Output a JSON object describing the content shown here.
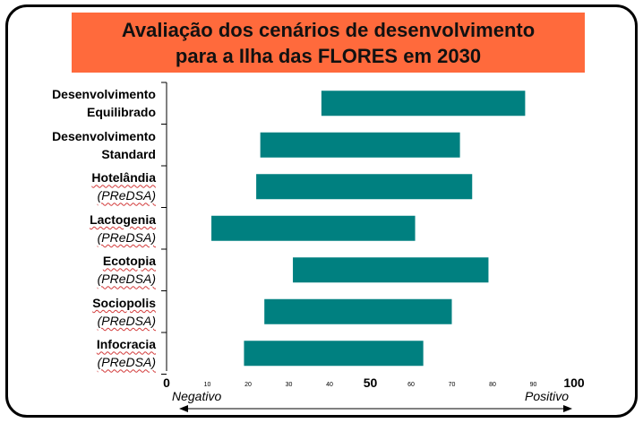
{
  "title": {
    "line1": "Avaliação dos cenários de desenvolvimento",
    "line2": "para a Ilha das FLORES em 2030"
  },
  "chart_data": {
    "type": "bar",
    "orientation": "horizontal-range",
    "xlim": [
      0,
      100
    ],
    "grid": false,
    "bar_color": "#008080",
    "title_bg_color": "#ff6a3c",
    "xlabel_left": "Negativo",
    "xlabel_right": "Positivo",
    "ticks": [
      {
        "value": 0,
        "label": "0",
        "major": true
      },
      {
        "value": 10,
        "label": "10",
        "major": false
      },
      {
        "value": 20,
        "label": "20",
        "major": false
      },
      {
        "value": 30,
        "label": "30",
        "major": false
      },
      {
        "value": 40,
        "label": "40",
        "major": false
      },
      {
        "value": 50,
        "label": "50",
        "major": true
      },
      {
        "value": 60,
        "label": "60",
        "major": false
      },
      {
        "value": 70,
        "label": "70",
        "major": false
      },
      {
        "value": 80,
        "label": "80",
        "major": false
      },
      {
        "value": 90,
        "label": "90",
        "major": false
      },
      {
        "value": 100,
        "label": "100",
        "major": true
      }
    ],
    "categories": [
      {
        "line1": "Desenvolvimento",
        "line2": "Equilibrado",
        "line2_style": "bold",
        "min": 38,
        "max": 88
      },
      {
        "line1": "Desenvolvimento",
        "line2": "Standard",
        "line2_style": "bold",
        "min": 23,
        "max": 72
      },
      {
        "line1": "Hotelândia",
        "line2": "(PReDSA)",
        "line2_style": "italic",
        "min": 22,
        "max": 75
      },
      {
        "line1": "Lactogenia",
        "line2": "(PReDSA)",
        "line2_style": "italic",
        "min": 11,
        "max": 61
      },
      {
        "line1": "Ecotopia",
        "line2": "(PReDSA)",
        "line2_style": "italic",
        "min": 31,
        "max": 79
      },
      {
        "line1": "Sociopolis",
        "line2": "(PReDSA)",
        "line2_style": "italic",
        "min": 24,
        "max": 70
      },
      {
        "line1": "Infocracia",
        "line2": "(PReDSA)",
        "line2_style": "italic",
        "min": 19,
        "max": 63
      }
    ]
  }
}
